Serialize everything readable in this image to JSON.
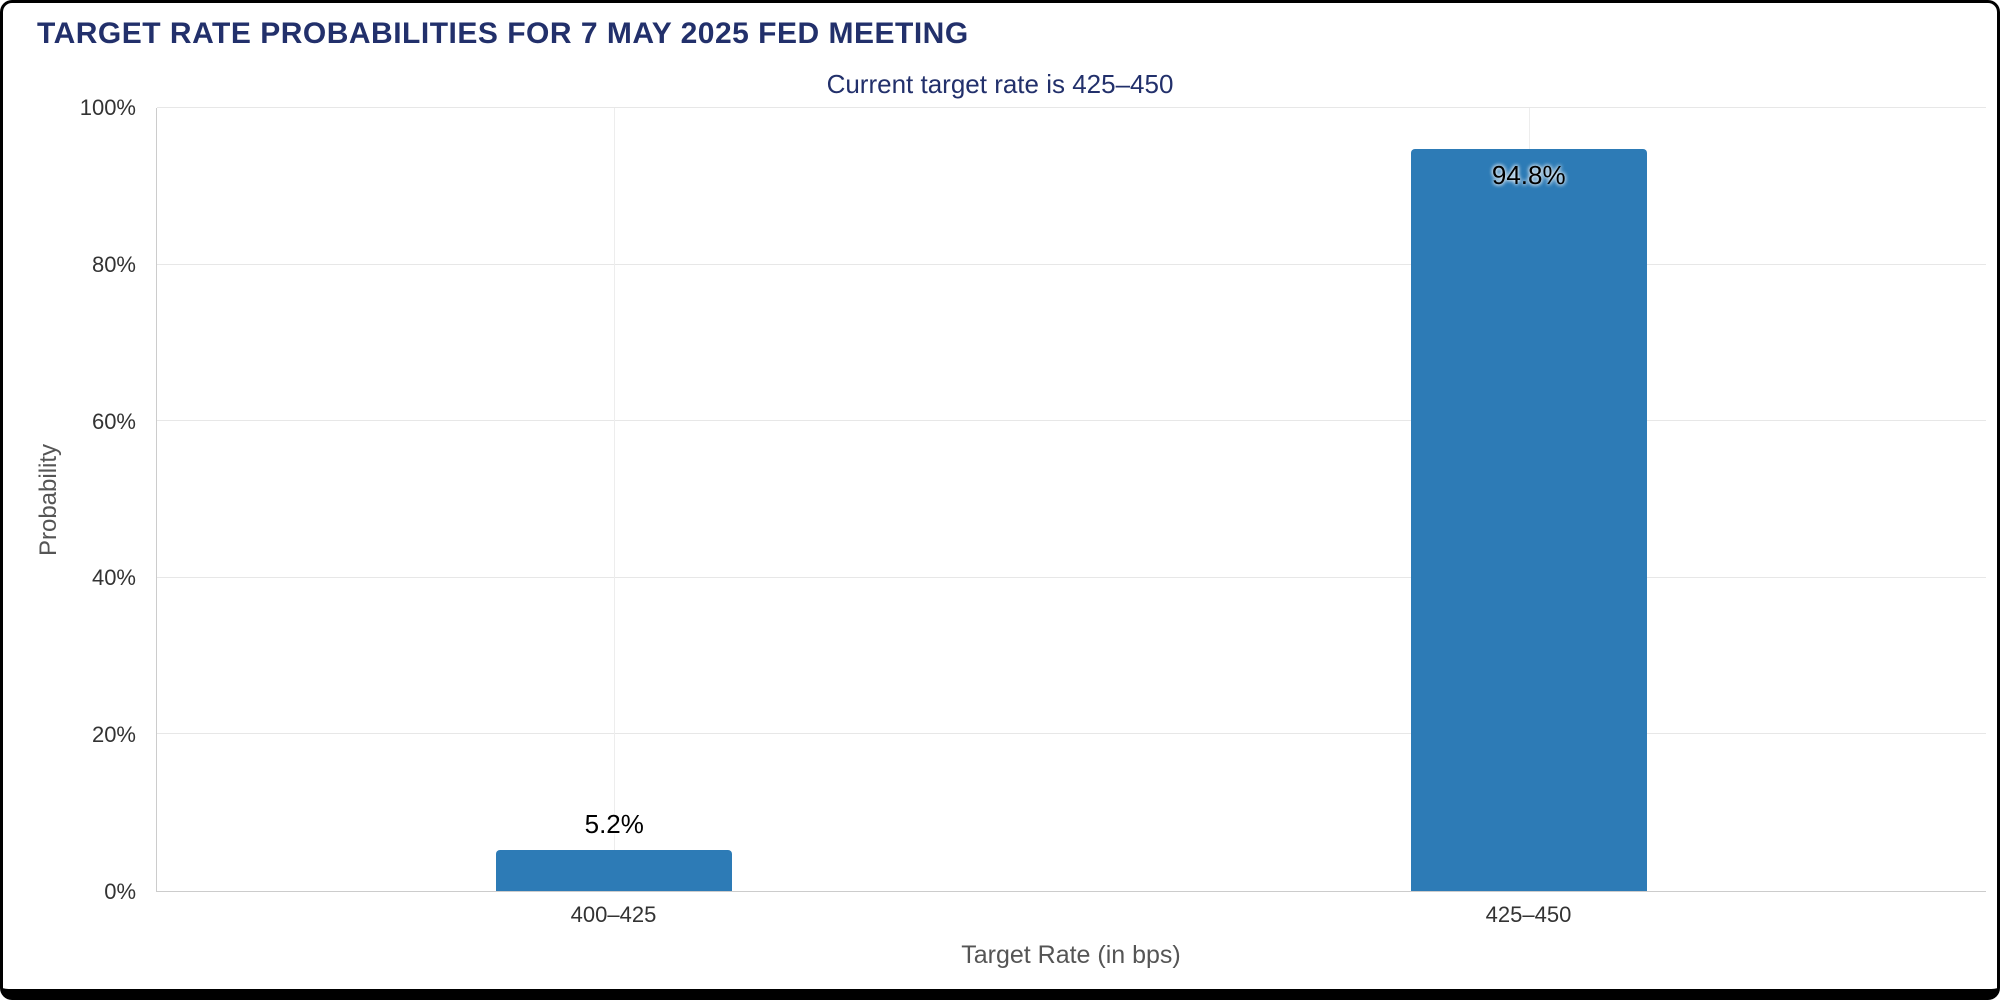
{
  "colors": {
    "bar": "#2d7bb6",
    "heading": "#22306b",
    "grid": "#e7e7e7",
    "axis_line": "#cccccc",
    "tick_text": "#333333",
    "axis_title_text": "#555555"
  },
  "chart_data": {
    "type": "bar",
    "title": "TARGET RATE PROBABILITIES FOR 7 MAY 2025 FED MEETING",
    "subtitle": "Current target rate is 425–450",
    "categories": [
      "400–425",
      "425–450"
    ],
    "values": [
      5.2,
      94.8
    ],
    "value_labels": [
      "5.2%",
      "94.8%"
    ],
    "xlabel": "Target Rate (in bps)",
    "ylabel": "Probability",
    "ylim": [
      0,
      100
    ],
    "yticks": [
      0,
      20,
      40,
      60,
      80,
      100
    ],
    "ytick_labels": [
      "0%",
      "20%",
      "40%",
      "60%",
      "80%",
      "100%"
    ],
    "grid": true,
    "legend": "none"
  }
}
